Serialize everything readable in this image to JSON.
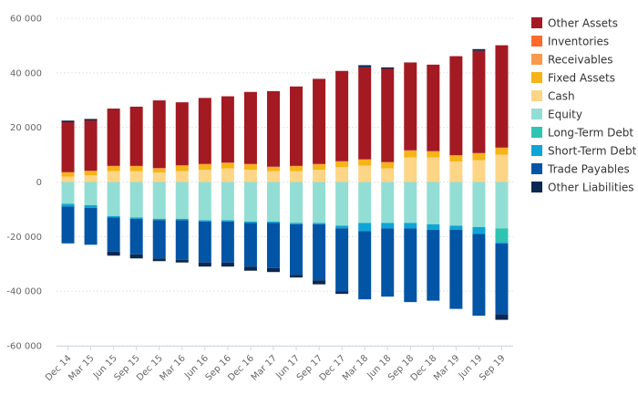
{
  "chart_data": {
    "type": "bar",
    "stacked": true,
    "title": "",
    "xlabel": "",
    "ylabel": "",
    "ylim": [
      -60000,
      60000
    ],
    "yticks": [
      60000,
      40000,
      20000,
      0,
      -20000,
      -40000,
      -60000
    ],
    "ytick_labels": [
      "60 000",
      "40 000",
      "20 000",
      "0",
      "-20 000",
      "-40 000",
      "-60 000"
    ],
    "categories": [
      "Dec 14",
      "Mar 15",
      "Jun 15",
      "Sep 15",
      "Dec 15",
      "Mar 16",
      "Jun 16",
      "Sep 16",
      "Dec 16",
      "Mar 17",
      "Jun 17",
      "Sep 17",
      "Dec 17",
      "Mar 18",
      "Jun 18",
      "Sep 18",
      "Dec 18",
      "Mar 19",
      "Jun 19",
      "Sep 19"
    ],
    "xtick_labels": [
      "Dec 14",
      "Mar 15",
      "Jun 15",
      "Sep 15",
      "Dec 15",
      "Mar 16",
      "Jun 16",
      "Sep 16",
      "Dec 16",
      "Mar 17",
      "Jun 17",
      "Sep 17",
      "Dec 17",
      "Mar 18",
      "Jun 18",
      "Sep 18",
      "Dec 18",
      "Mar 19",
      "Jun 19",
      "Sep 19"
    ],
    "legend_position": "right",
    "series": [
      {
        "name": "Cash",
        "side": "positive",
        "color": "#fdd587",
        "values": [
          2000,
          2500,
          4000,
          4000,
          3500,
          4000,
          4500,
          5000,
          4500,
          4000,
          4000,
          4500,
          5500,
          6000,
          5000,
          9000,
          9000,
          7500,
          8000,
          10000
        ]
      },
      {
        "name": "Fixed Assets",
        "side": "positive",
        "color": "#f6b418",
        "values": [
          1500,
          1500,
          1800,
          1800,
          1500,
          2000,
          2000,
          2000,
          2000,
          1500,
          1800,
          2000,
          2000,
          2200,
          2200,
          2500,
          2200,
          2200,
          2500,
          2500
        ]
      },
      {
        "name": "Receivables",
        "side": "positive",
        "color": "#f99a4d",
        "values": [
          100,
          100,
          100,
          100,
          100,
          100,
          100,
          100,
          100,
          100,
          100,
          100,
          100,
          100,
          100,
          100,
          100,
          100,
          100,
          100
        ]
      },
      {
        "name": "Inventories",
        "side": "positive",
        "color": "#ff6b2a",
        "values": [
          0,
          0,
          0,
          0,
          0,
          0,
          0,
          0,
          0,
          0,
          0,
          0,
          0,
          0,
          0,
          0,
          0,
          0,
          0,
          0
        ]
      },
      {
        "name": "Other Assets",
        "side": "positive",
        "color": "#a31a22",
        "values": [
          18300,
          18700,
          21000,
          21700,
          24800,
          23100,
          24200,
          24300,
          26400,
          27700,
          29100,
          31200,
          33100,
          33700,
          34400,
          32200,
          31700,
          36300,
          37500,
          37500
        ]
      },
      {
        "name": "Equity",
        "side": "negative",
        "color": "#92ded4",
        "values": [
          8000,
          8500,
          12500,
          13000,
          13500,
          13500,
          14000,
          14000,
          14500,
          14500,
          15000,
          15000,
          16000,
          15000,
          15000,
          15000,
          15500,
          16000,
          16500,
          17000
        ]
      },
      {
        "name": "Long-Term Debt",
        "side": "negative",
        "color": "#2fc4b2",
        "values": [
          0,
          0,
          0,
          0,
          0,
          0,
          0,
          0,
          0,
          0,
          0,
          0,
          0,
          0,
          0,
          0,
          0,
          0,
          0,
          5000
        ]
      },
      {
        "name": "Short-Term Debt",
        "side": "negative",
        "color": "#0ea5d6",
        "values": [
          1000,
          1000,
          500,
          500,
          500,
          500,
          500,
          500,
          500,
          500,
          500,
          500,
          1000,
          3000,
          2000,
          2000,
          2000,
          1500,
          2500,
          500
        ]
      },
      {
        "name": "Trade Payables",
        "side": "negative",
        "color": "#0255a5",
        "values": [
          13500,
          13500,
          12500,
          13000,
          14000,
          14500,
          15000,
          15000,
          16000,
          16500,
          18500,
          20500,
          23000,
          25000,
          25000,
          27000,
          26000,
          29000,
          30000,
          26000
        ]
      },
      {
        "name": "Other Liabilities",
        "side": "negative",
        "color": "#0a2852",
        "values": [
          0,
          0,
          1500,
          1500,
          1000,
          1000,
          1500,
          1500,
          1500,
          1500,
          1000,
          1500,
          1000,
          0,
          0,
          0,
          0,
          0,
          0,
          2000
        ]
      }
    ],
    "legend": [
      "Other Assets",
      "Inventories",
      "Receivables",
      "Fixed Assets",
      "Cash",
      "Equity",
      "Long-Term Debt",
      "Short-Term Debt",
      "Trade Payables",
      "Other Liabilities"
    ],
    "extra_marks": [
      {
        "category": "Dec 14",
        "color": "#0a2852",
        "value": 600
      },
      {
        "category": "Mar 15",
        "color": "#0a2852",
        "value": 300
      },
      {
        "category": "Mar 18",
        "color": "#0a2852",
        "value": 800
      },
      {
        "category": "Jun 18",
        "color": "#0a2852",
        "value": 300
      },
      {
        "category": "Jun 19",
        "color": "#0a2852",
        "value": 600
      }
    ]
  }
}
